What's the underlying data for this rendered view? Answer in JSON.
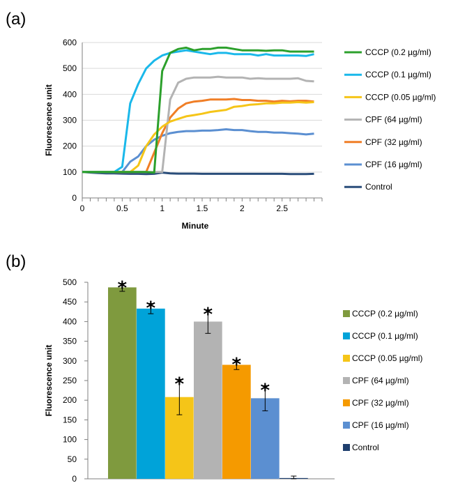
{
  "chart_data": [
    {
      "panel": "(a)",
      "type": "line",
      "title": "",
      "xlabel": "Minute",
      "ylabel": "Fluorescence unit",
      "xlim": [
        0,
        3
      ],
      "ylim": [
        0,
        600
      ],
      "xticks": [
        0,
        0.5,
        1,
        1.5,
        2,
        2.5
      ],
      "yticks": [
        0,
        100,
        200,
        300,
        400,
        500,
        600
      ],
      "grid": true,
      "legend_position": "right",
      "x": [
        0,
        0.1,
        0.2,
        0.3,
        0.4,
        0.5,
        0.6,
        0.7,
        0.8,
        0.9,
        1.0,
        1.1,
        1.2,
        1.3,
        1.4,
        1.5,
        1.6,
        1.7,
        1.8,
        1.9,
        2.0,
        2.1,
        2.2,
        2.3,
        2.4,
        2.5,
        2.6,
        2.7,
        2.8,
        2.9
      ],
      "series": [
        {
          "name": "CCCP (0.2 µg/ml)",
          "color": "#2ca02c",
          "values": [
            100,
            100,
            100,
            100,
            100,
            100,
            100,
            100,
            100,
            98,
            490,
            560,
            575,
            580,
            570,
            575,
            575,
            580,
            580,
            575,
            570,
            570,
            570,
            568,
            570,
            570,
            565,
            565,
            565,
            565
          ]
        },
        {
          "name": "CCCP (0.1 µg/ml)",
          "color": "#1ab8ea",
          "values": [
            100,
            100,
            100,
            100,
            100,
            120,
            365,
            440,
            500,
            530,
            550,
            560,
            565,
            570,
            565,
            560,
            555,
            560,
            560,
            555,
            555,
            555,
            550,
            555,
            550,
            550,
            550,
            550,
            548,
            555
          ]
        },
        {
          "name": "CCCP (0.05 µg/ml)",
          "color": "#f5c518",
          "values": [
            100,
            100,
            100,
            100,
            100,
            100,
            100,
            125,
            200,
            245,
            275,
            295,
            305,
            315,
            320,
            325,
            332,
            336,
            340,
            352,
            355,
            360,
            362,
            365,
            365,
            368,
            368,
            370,
            368,
            370
          ]
        },
        {
          "name": "CPF (64 µg/ml)",
          "color": "#b3b3b3",
          "values": [
            100,
            100,
            100,
            100,
            100,
            100,
            100,
            100,
            100,
            100,
            100,
            380,
            445,
            460,
            465,
            465,
            465,
            468,
            465,
            465,
            465,
            460,
            462,
            460,
            460,
            460,
            460,
            462,
            452,
            450
          ]
        },
        {
          "name": "CPF (32 µg/ml)",
          "color": "#f07e26",
          "values": [
            100,
            100,
            100,
            100,
            100,
            100,
            100,
            100,
            100,
            175,
            250,
            310,
            345,
            365,
            372,
            375,
            380,
            380,
            380,
            382,
            378,
            378,
            375,
            375,
            372,
            375,
            373,
            375,
            375,
            372
          ]
        },
        {
          "name": "CPF (16 µg/ml)",
          "color": "#5b8fd1",
          "values": [
            100,
            100,
            100,
            100,
            100,
            100,
            140,
            160,
            200,
            225,
            240,
            250,
            255,
            258,
            258,
            260,
            260,
            262,
            265,
            262,
            262,
            258,
            255,
            255,
            252,
            252,
            250,
            248,
            245,
            248
          ]
        },
        {
          "name": "Control",
          "color": "#2a4d7a",
          "values": [
            100,
            98,
            96,
            95,
            95,
            94,
            93,
            93,
            92,
            93,
            98,
            95,
            94,
            94,
            94,
            93,
            93,
            93,
            93,
            93,
            93,
            93,
            93,
            93,
            93,
            93,
            92,
            92,
            92,
            93
          ]
        }
      ]
    },
    {
      "panel": "(b)",
      "type": "bar",
      "title": "",
      "xlabel": "",
      "ylabel": "Fluorescence unit",
      "ylim": [
        0,
        500
      ],
      "yticks": [
        0,
        50,
        100,
        150,
        200,
        250,
        300,
        350,
        400,
        450,
        500
      ],
      "grid": false,
      "legend_position": "right",
      "significance_marker": "*",
      "categories": [
        "CCCP (0.2 µg/ml)",
        "CCCP (0.1 µg/ml)",
        "CCCP (0.05 µg/ml)",
        "CPF (64 µg/ml)",
        "CPF (32 µg/ml)",
        "CPF (16 µg/ml)",
        "Control"
      ],
      "values": [
        487,
        433,
        208,
        400,
        290,
        205,
        2
      ],
      "errors": [
        10,
        13,
        45,
        30,
        12,
        32,
        5
      ],
      "significant": [
        true,
        true,
        true,
        true,
        true,
        true,
        false
      ],
      "colors": [
        "#7f9a3e",
        "#00a3d9",
        "#f5c518",
        "#b3b3b3",
        "#f59a00",
        "#5b8fd1",
        "#1f3f6e"
      ]
    }
  ]
}
